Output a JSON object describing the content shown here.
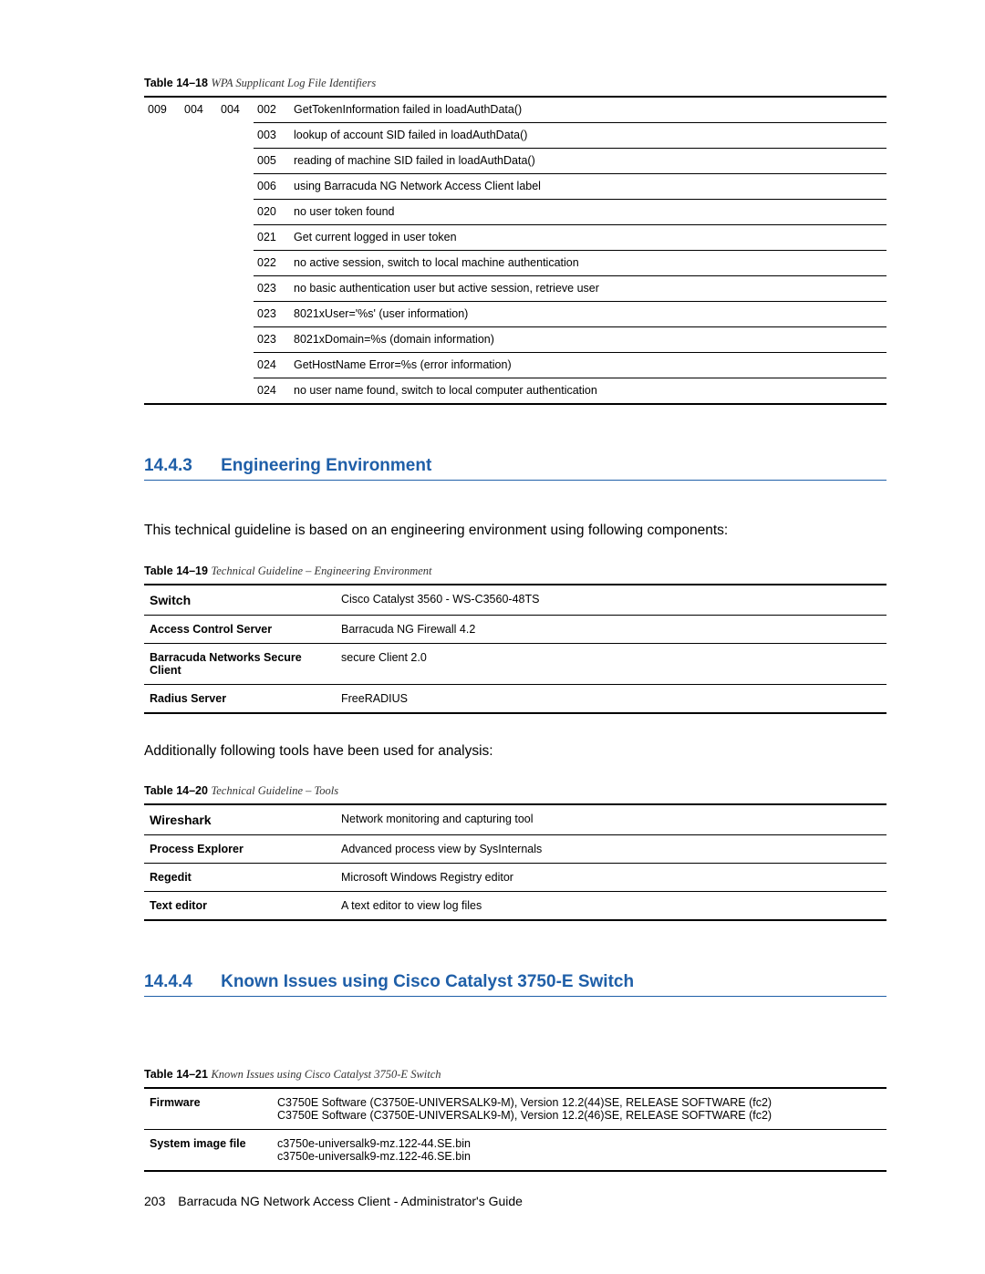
{
  "colors": {
    "heading": "#1f5fa8",
    "rule": "#000000",
    "text": "#000000",
    "bg": "#ffffff"
  },
  "table18": {
    "label_prefix": "Table 14–18",
    "title": "WPA Supplicant Log File Identifiers",
    "lead": {
      "c1": "009",
      "c2": "004",
      "c3": "004"
    },
    "rows": [
      {
        "code": "002",
        "msg": "GetTokenInformation failed in loadAuthData()"
      },
      {
        "code": "003",
        "msg": "lookup of account SID failed in loadAuthData()"
      },
      {
        "code": "005",
        "msg": "reading of machine SID failed in loadAuthData()"
      },
      {
        "code": "006",
        "msg": "using Barracuda NG Network Access Client label"
      },
      {
        "code": "020",
        "msg": "no user token found"
      },
      {
        "code": "021",
        "msg": "Get current logged in user token"
      },
      {
        "code": "022",
        "msg": "no active session, switch to local machine authentication"
      },
      {
        "code": "023",
        "msg": "no basic authentication user but active session, retrieve user"
      },
      {
        "code": "023",
        "msg": "8021xUser='%s' (user information)"
      },
      {
        "code": "023",
        "msg": "8021xDomain=%s (domain information)"
      },
      {
        "code": "024",
        "msg": "GetHostName Error=%s (error information)"
      },
      {
        "code": "024",
        "msg": "no user name found, switch to local computer authentication"
      }
    ]
  },
  "section1": {
    "num": "14.4.3",
    "title": "Engineering Environment",
    "intro": "This technical guideline is based on an engineering environment using following components:",
    "table19": {
      "label_prefix": "Table 14–19",
      "title": "Technical Guideline – Engineering Environment",
      "rows": [
        {
          "k": "Switch",
          "v": "Cisco Catalyst 3560 - WS-C3560-48TS"
        },
        {
          "k": "Access Control Server",
          "v": "Barracuda NG Firewall 4.2"
        },
        {
          "k": "Barracuda Networks Secure Client",
          "v": "secure Client 2.0"
        },
        {
          "k": "Radius Server",
          "v": "FreeRADIUS"
        }
      ]
    },
    "intro2": "Additionally following tools have been used for analysis:",
    "table20": {
      "label_prefix": "Table 14–20",
      "title": "Technical Guideline – Tools",
      "rows": [
        {
          "k": "Wireshark",
          "v": "Network monitoring and capturing tool"
        },
        {
          "k": "Process Explorer",
          "v": "Advanced process view by SysInternals"
        },
        {
          "k": "Regedit",
          "v": "Microsoft Windows Registry editor"
        },
        {
          "k": "Text editor",
          "v": "A text editor to view log files"
        }
      ]
    }
  },
  "section2": {
    "num": "14.4.4",
    "title": "Known Issues using Cisco Catalyst 3750-E Switch",
    "table21": {
      "label_prefix": "Table 14–21",
      "title": "Known Issues using Cisco Catalyst 3750-E Switch",
      "rows": [
        {
          "k": "Firmware",
          "v": "C3750E Software (C3750E-UNIVERSALK9-M), Version 12.2(44)SE, RELEASE SOFTWARE (fc2)\nC3750E Software (C3750E-UNIVERSALK9-M), Version 12.2(46)SE, RELEASE SOFTWARE (fc2)"
        },
        {
          "k": "System image file",
          "v": "c3750e-universalk9-mz.122-44.SE.bin\nc3750e-universalk9-mz.122-46.SE.bin"
        }
      ]
    }
  },
  "footer": {
    "page": "203",
    "title": "Barracuda NG Network Access Client - Administrator's Guide"
  }
}
